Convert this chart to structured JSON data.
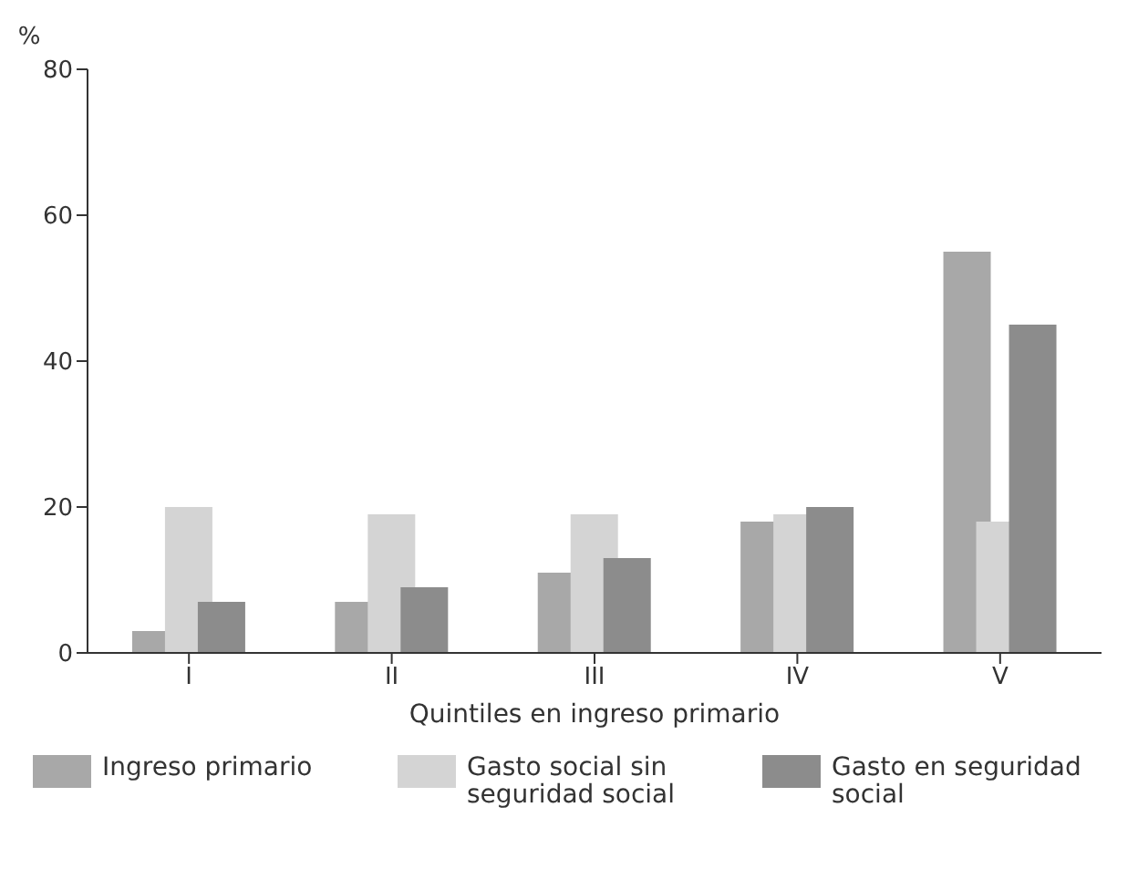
{
  "chart_data": {
    "type": "bar",
    "ylabel": "%",
    "xlabel": "Quintiles en ingreso primario",
    "categories": [
      "I",
      "II",
      "III",
      "IV",
      "V"
    ],
    "series": [
      {
        "name": "Ingreso primario",
        "color": "#a8a8a8",
        "values": [
          3,
          7,
          11,
          18,
          55
        ]
      },
      {
        "name": "Gasto social sin seguridad social",
        "color": "#d4d4d4",
        "values": [
          20,
          19,
          19,
          19,
          18
        ]
      },
      {
        "name": "Gasto en seguridad social",
        "color": "#8c8c8c",
        "values": [
          7,
          9,
          13,
          20,
          45
        ]
      }
    ],
    "ylim": [
      0,
      80
    ],
    "yticks": [
      0,
      20,
      40,
      60,
      80
    ],
    "legend": "bottom"
  }
}
